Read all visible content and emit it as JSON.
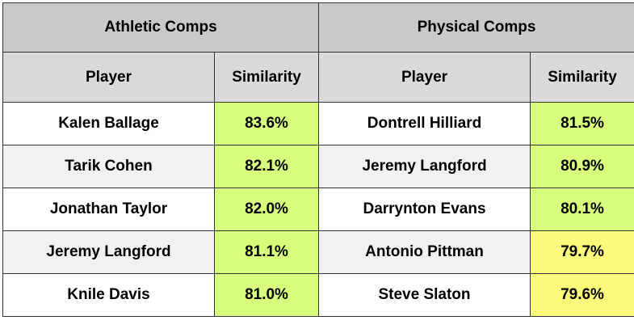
{
  "groups": {
    "athletic": "Athletic Comps",
    "physical": "Physical Comps"
  },
  "headers": {
    "player": "Player",
    "similarity": "Similarity"
  },
  "colors": {
    "group_header_bg": "#c9c9c9",
    "column_header_bg": "#dadada",
    "high_similarity": "#d7ff7d",
    "lower_similarity": "#fdfb7b",
    "row_alt": "#f1f1f1"
  },
  "athletic_comps": [
    {
      "player": "Kalen Ballage",
      "similarity": "83.6%",
      "tier": "green"
    },
    {
      "player": "Tarik Cohen",
      "similarity": "82.1%",
      "tier": "green"
    },
    {
      "player": "Jonathan Taylor",
      "similarity": "82.0%",
      "tier": "green"
    },
    {
      "player": "Jeremy Langford",
      "similarity": "81.1%",
      "tier": "green"
    },
    {
      "player": "Knile Davis",
      "similarity": "81.0%",
      "tier": "green"
    }
  ],
  "physical_comps": [
    {
      "player": "Dontrell Hilliard",
      "similarity": "81.5%",
      "tier": "green"
    },
    {
      "player": "Jeremy Langford",
      "similarity": "80.9%",
      "tier": "green"
    },
    {
      "player": "Darrynton Evans",
      "similarity": "80.1%",
      "tier": "green"
    },
    {
      "player": "Antonio Pittman",
      "similarity": "79.7%",
      "tier": "yellow"
    },
    {
      "player": "Steve Slaton",
      "similarity": "79.6%",
      "tier": "yellow"
    }
  ]
}
